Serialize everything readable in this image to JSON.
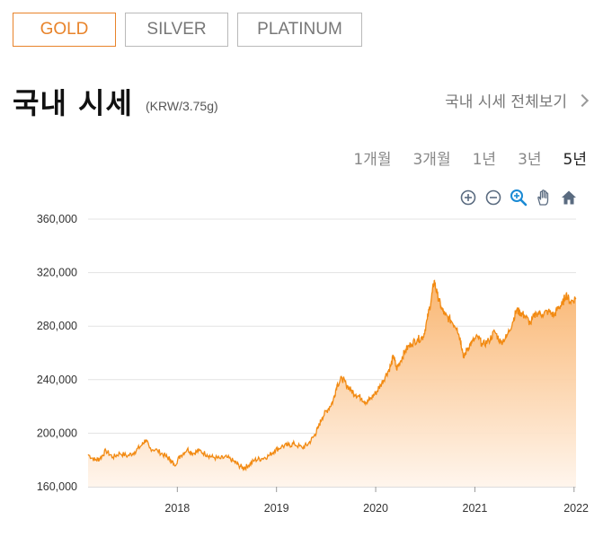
{
  "tabs": [
    {
      "label": "GOLD",
      "active": true
    },
    {
      "label": "SILVER",
      "active": false
    },
    {
      "label": "PLATINUM",
      "active": false
    }
  ],
  "header": {
    "title": "국내 시세",
    "unit": "(KRW/3.75g)",
    "view_all": "국내 시세 전체보기"
  },
  "ranges": [
    {
      "label": "1개월",
      "active": false
    },
    {
      "label": "3개월",
      "active": false
    },
    {
      "label": "1년",
      "active": false
    },
    {
      "label": "3년",
      "active": false
    },
    {
      "label": "5년",
      "active": true
    }
  ],
  "toolbar": {
    "icons": [
      "zoom-in-icon",
      "zoom-out-icon",
      "magnify-zoom-icon",
      "pan-hand-icon",
      "home-icon"
    ],
    "icon_color": "#5a6b80",
    "active_color": "#1a8ad4"
  },
  "colors": {
    "accent": "#e8832a",
    "line": "#f28a12",
    "area_top": "#f9b26a",
    "area_bottom": "#fff5ec"
  },
  "chart_data": {
    "type": "area",
    "title": "",
    "xlabel": "",
    "ylabel": "",
    "ylim": [
      160000,
      360000
    ],
    "yticks": [
      "160,000",
      "200,000",
      "240,000",
      "280,000",
      "320,000",
      "360,000"
    ],
    "xticks": [
      "2018",
      "2019",
      "2020",
      "2021",
      "2022"
    ],
    "xrange": [
      2017.1,
      2022.02
    ],
    "grid": true,
    "series": [
      {
        "values": [
          [
            2017.1,
            184000
          ],
          [
            2017.17,
            180000
          ],
          [
            2017.22,
            181000
          ],
          [
            2017.28,
            187000
          ],
          [
            2017.35,
            182000
          ],
          [
            2017.42,
            185000
          ],
          [
            2017.5,
            183000
          ],
          [
            2017.57,
            186000
          ],
          [
            2017.64,
            191000
          ],
          [
            2017.68,
            195000
          ],
          [
            2017.72,
            189000
          ],
          [
            2017.8,
            187000
          ],
          [
            2017.88,
            183000
          ],
          [
            2017.93,
            180000
          ],
          [
            2017.97,
            176000
          ],
          [
            2018.03,
            183000
          ],
          [
            2018.1,
            188000
          ],
          [
            2018.16,
            185000
          ],
          [
            2018.22,
            187000
          ],
          [
            2018.3,
            184000
          ],
          [
            2018.36,
            182000
          ],
          [
            2018.43,
            181000
          ],
          [
            2018.5,
            182000
          ],
          [
            2018.57,
            179000
          ],
          [
            2018.62,
            176000
          ],
          [
            2018.67,
            174000
          ],
          [
            2018.72,
            176000
          ],
          [
            2018.78,
            180000
          ],
          [
            2018.85,
            181000
          ],
          [
            2018.92,
            183000
          ],
          [
            2018.98,
            187000
          ],
          [
            2019.05,
            190000
          ],
          [
            2019.12,
            191000
          ],
          [
            2019.18,
            192000
          ],
          [
            2019.26,
            189000
          ],
          [
            2019.32,
            192000
          ],
          [
            2019.38,
            198000
          ],
          [
            2019.42,
            204000
          ],
          [
            2019.46,
            212000
          ],
          [
            2019.52,
            218000
          ],
          [
            2019.57,
            224000
          ],
          [
            2019.61,
            236000
          ],
          [
            2019.66,
            241000
          ],
          [
            2019.7,
            237000
          ],
          [
            2019.75,
            232000
          ],
          [
            2019.8,
            229000
          ],
          [
            2019.86,
            226000
          ],
          [
            2019.91,
            223000
          ],
          [
            2019.95,
            226000
          ],
          [
            2020.0,
            230000
          ],
          [
            2020.05,
            236000
          ],
          [
            2020.1,
            243000
          ],
          [
            2020.15,
            250000
          ],
          [
            2020.18,
            258000
          ],
          [
            2020.21,
            248000
          ],
          [
            2020.25,
            254000
          ],
          [
            2020.3,
            262000
          ],
          [
            2020.36,
            267000
          ],
          [
            2020.42,
            270000
          ],
          [
            2020.48,
            272000
          ],
          [
            2020.52,
            285000
          ],
          [
            2020.56,
            300000
          ],
          [
            2020.59,
            314000
          ],
          [
            2020.62,
            304000
          ],
          [
            2020.66,
            294000
          ],
          [
            2020.7,
            288000
          ],
          [
            2020.76,
            284000
          ],
          [
            2020.82,
            279000
          ],
          [
            2020.86,
            268000
          ],
          [
            2020.89,
            256000
          ],
          [
            2020.92,
            263000
          ],
          [
            2020.97,
            268000
          ],
          [
            2021.03,
            272000
          ],
          [
            2021.08,
            266000
          ],
          [
            2021.14,
            269000
          ],
          [
            2021.2,
            276000
          ],
          [
            2021.26,
            268000
          ],
          [
            2021.32,
            272000
          ],
          [
            2021.38,
            283000
          ],
          [
            2021.42,
            292000
          ],
          [
            2021.46,
            290000
          ],
          [
            2021.5,
            288000
          ],
          [
            2021.56,
            282000
          ],
          [
            2021.62,
            290000
          ],
          [
            2021.68,
            289000
          ],
          [
            2021.74,
            291000
          ],
          [
            2021.8,
            288000
          ],
          [
            2021.84,
            294000
          ],
          [
            2021.88,
            296000
          ],
          [
            2021.92,
            304000
          ],
          [
            2021.96,
            298000
          ],
          [
            2022.02,
            301000
          ]
        ]
      }
    ]
  }
}
